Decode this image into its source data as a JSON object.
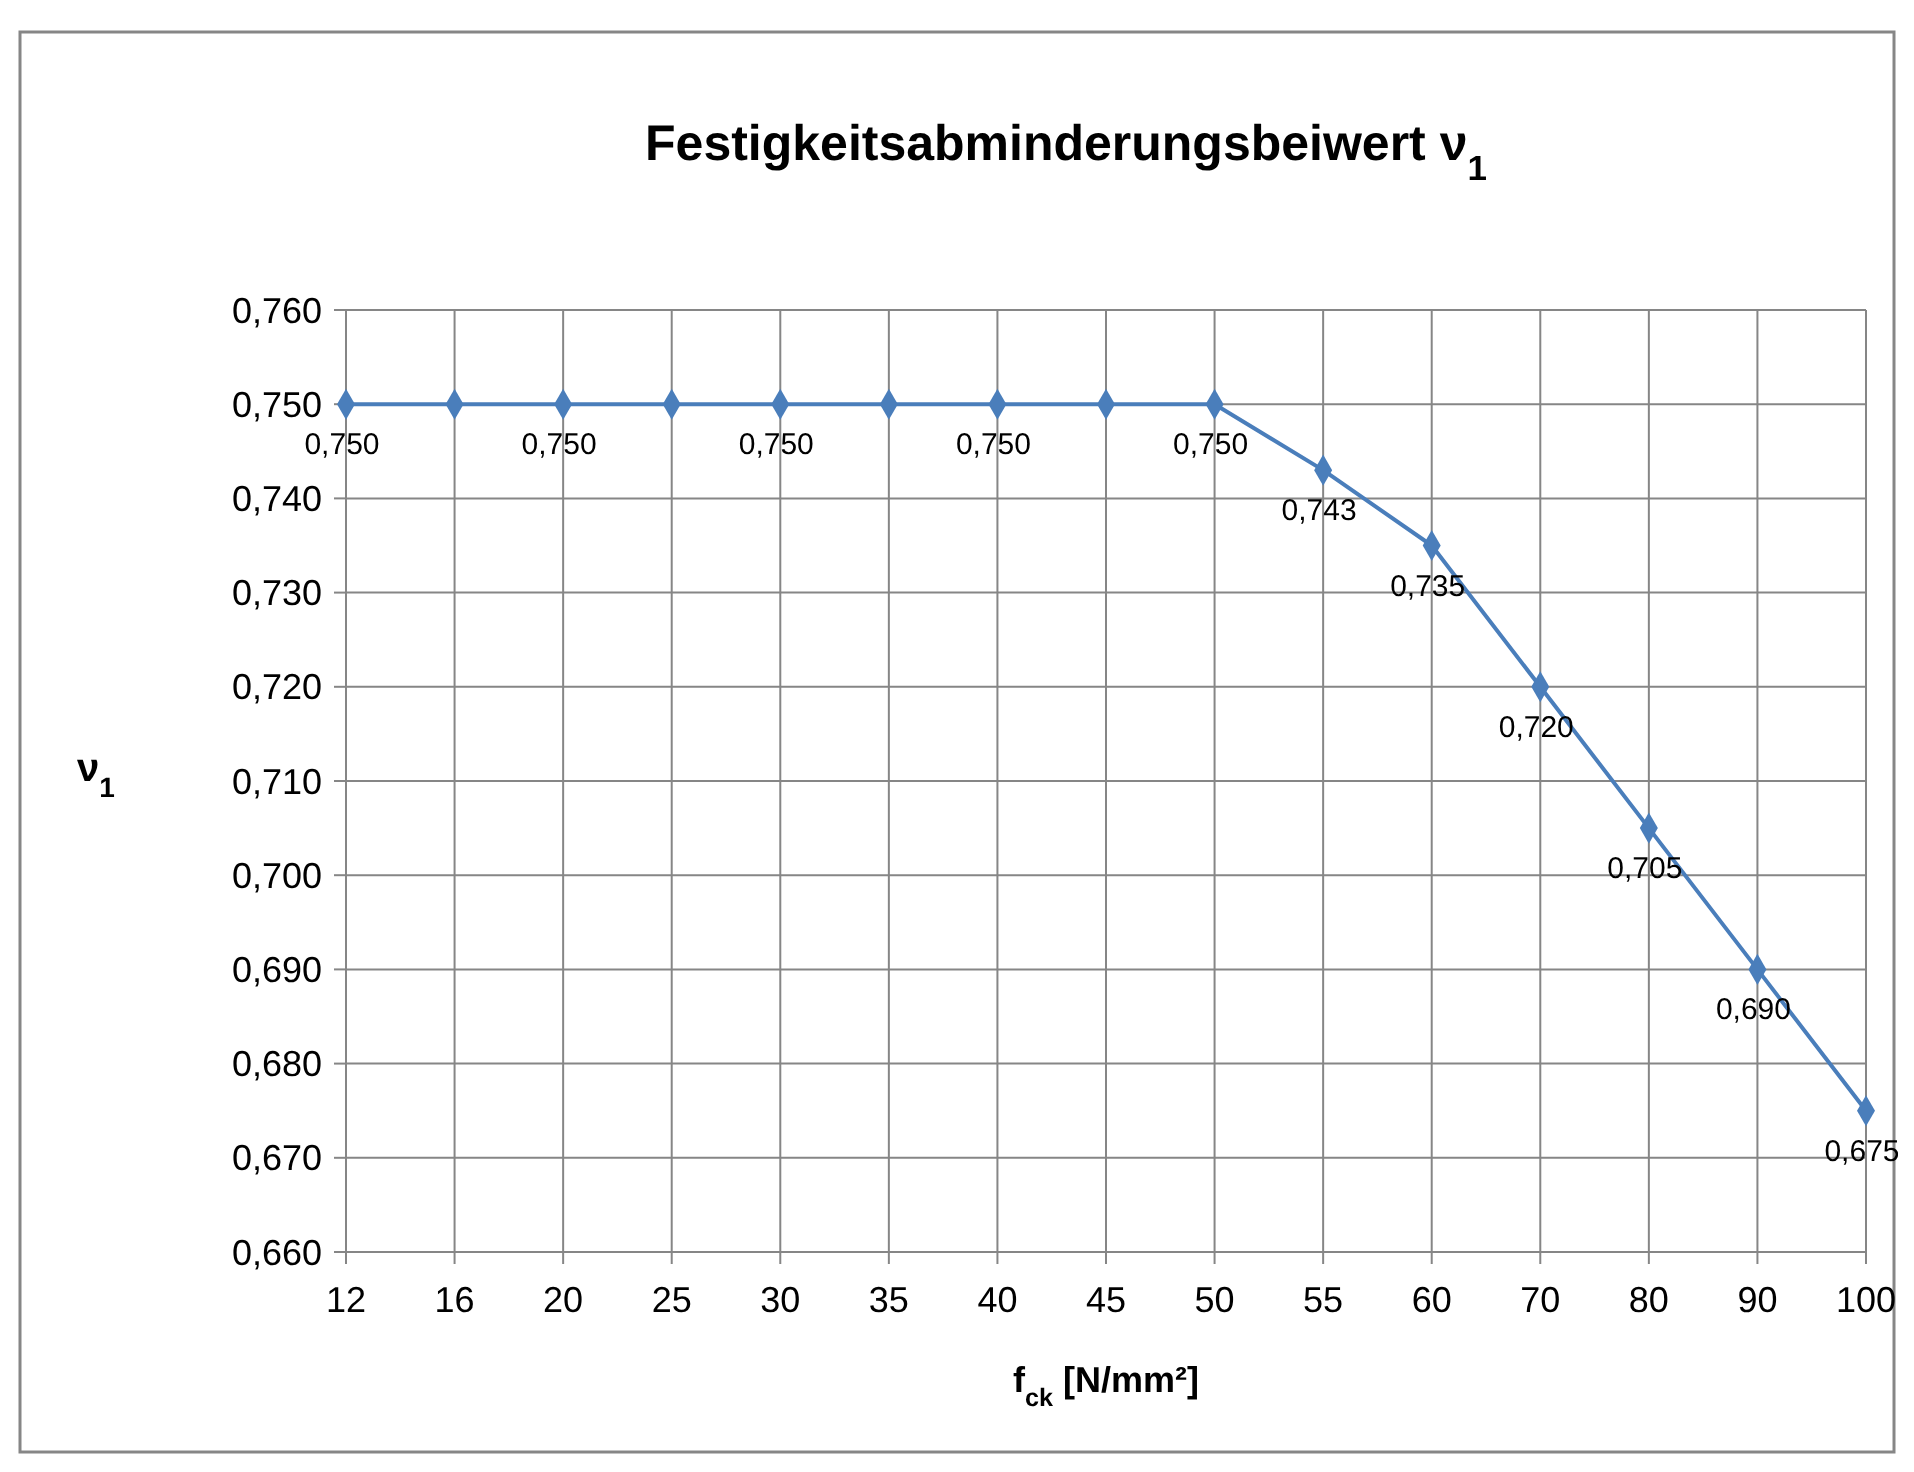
{
  "chart_data": {
    "type": "line",
    "title": "Festigkeitsabminderungsbeiwert ν$_{1}$",
    "xlabel": "f$_{ck}$  [N/mm²]",
    "ylabel": "ν$_{1}$",
    "categories": [
      "12",
      "16",
      "20",
      "25",
      "30",
      "35",
      "40",
      "45",
      "50",
      "55",
      "60",
      "70",
      "80",
      "90",
      "100"
    ],
    "series": [
      {
        "color": "#4a7ebb",
        "values": [
          0.75,
          0.75,
          0.75,
          0.75,
          0.75,
          0.75,
          0.75,
          0.75,
          0.75,
          0.743,
          0.735,
          0.72,
          0.705,
          0.69,
          0.675
        ],
        "value_labels": [
          "0,750",
          null,
          "0,750",
          null,
          "0,750",
          null,
          "0,750",
          null,
          "0,750",
          "0,743",
          "0,735",
          "0,720",
          "0,705",
          "0,690",
          "0,675"
        ]
      }
    ],
    "ylim": [
      0.66,
      0.76
    ],
    "yticks": [
      {
        "value": 0.66,
        "label": "0,660"
      },
      {
        "value": 0.67,
        "label": "0,670"
      },
      {
        "value": 0.68,
        "label": "0,680"
      },
      {
        "value": 0.69,
        "label": "0,690"
      },
      {
        "value": 0.7,
        "label": "0,700"
      },
      {
        "value": 0.71,
        "label": "0,710"
      },
      {
        "value": 0.72,
        "label": "0,720"
      },
      {
        "value": 0.73,
        "label": "0,730"
      },
      {
        "value": 0.74,
        "label": "0,740"
      },
      {
        "value": 0.75,
        "label": "0,750"
      },
      {
        "value": 0.76,
        "label": "0,760"
      }
    ],
    "grid": true,
    "marker": "diamond",
    "line_style": "solid"
  }
}
